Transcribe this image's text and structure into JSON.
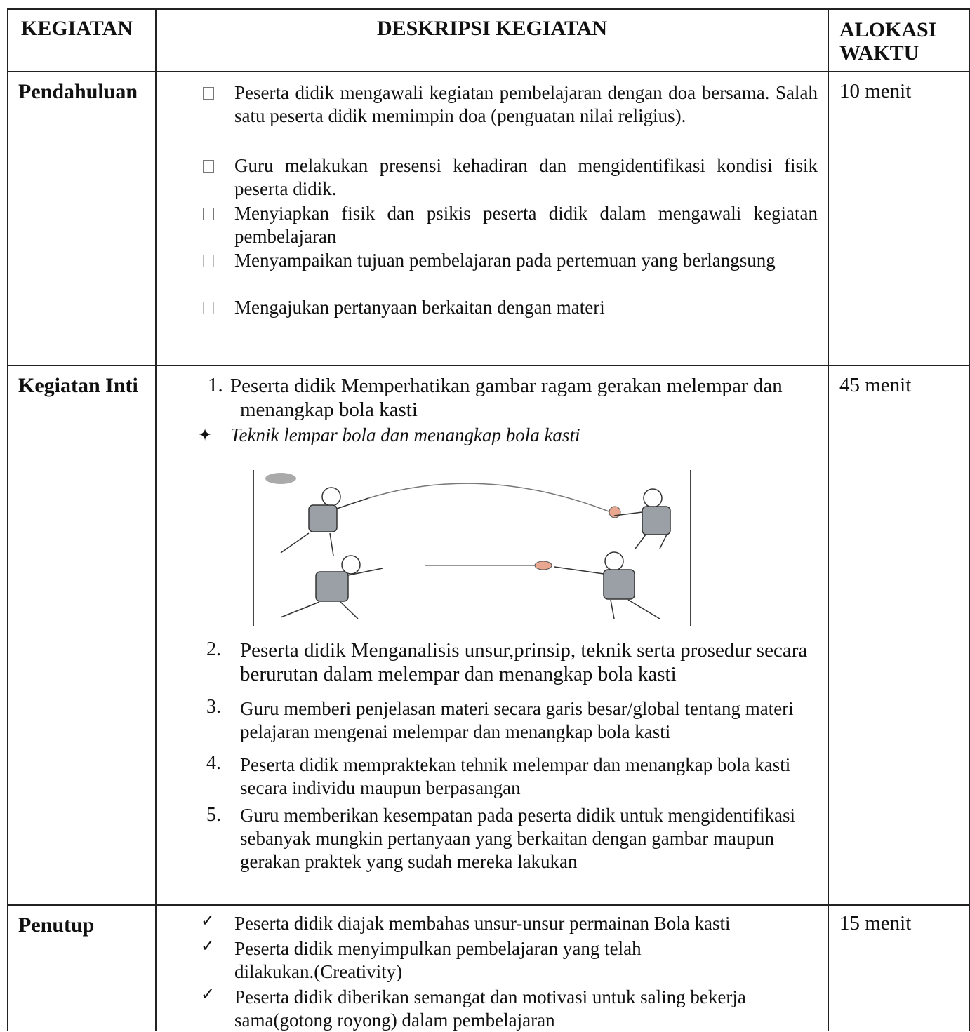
{
  "table": {
    "headers": [
      "KEGIATAN",
      "DESKRIPSI KEGIATAN",
      "ALOKASI WAKTU"
    ],
    "rows": [
      {
        "activity": "Pendahuluan",
        "time": "10 menit",
        "items": [
          "Peserta didik mengawali kegiatan pembelajaran dengan doa bersama. Salah satu peserta didik memimpin doa (penguatan nilai religius).",
          "Guru melakukan presensi kehadiran dan mengidentifikasi kondisi fisik peserta didik.",
          "Menyiapkan fisik dan psikis peserta didik  dalam mengawali kegiatan pembelajaran",
          "Menyampaikan tujuan pembelajaran pada pertemuan yang berlangsung",
          "Mengajukan pertanyaan berkaitan dengan materi"
        ]
      },
      {
        "activity": "Kegiatan Inti",
        "time": "45 menit",
        "items": [
          {
            "number": "1.",
            "text": "Peserta didik Memperhatikan gambar ragam gerakan melempar dan menangkap bola kasti"
          },
          {
            "number": "2.",
            "text": "Peserta didik Menganalisis unsur,prinsip, teknik serta prosedur secara berurutan dalam melempar dan menangkap bola kasti"
          },
          {
            "number": "3.",
            "text": "Guru memberi penjelasan materi secara garis besar/global tentang materi pelajaran  mengenai melempar dan menangkap bola kasti"
          },
          {
            "number": "4.",
            "text": "Peserta didik mempraktekan tehnik melempar dan menangkap bola kasti secara individu maupun berpasangan"
          },
          {
            "number": "5.",
            "text": "Guru memberikan kesempatan pada peserta didik untuk mengidentifikasi sebanyak mungkin pertanyaan yang berkaitan dengan gambar maupun gerakan praktek yang sudah mereka lakukan"
          }
        ],
        "note": "Teknik lempar bola dan menangkap bola kasti"
      },
      {
        "activity": "Penutup",
        "time": "15 menit",
        "items": [
          "Peserta didik diajak membahas unsur-unsur permainan Bola kasti",
          "Peserta didik menyimpulkan pembelajaran yang telah dilakukan.(Creativity)",
          "Peserta didik diberikan semangat dan motivasi untuk saling bekerja sama(gotong royong) dalam pembelajaran"
        ]
      }
    ]
  }
}
